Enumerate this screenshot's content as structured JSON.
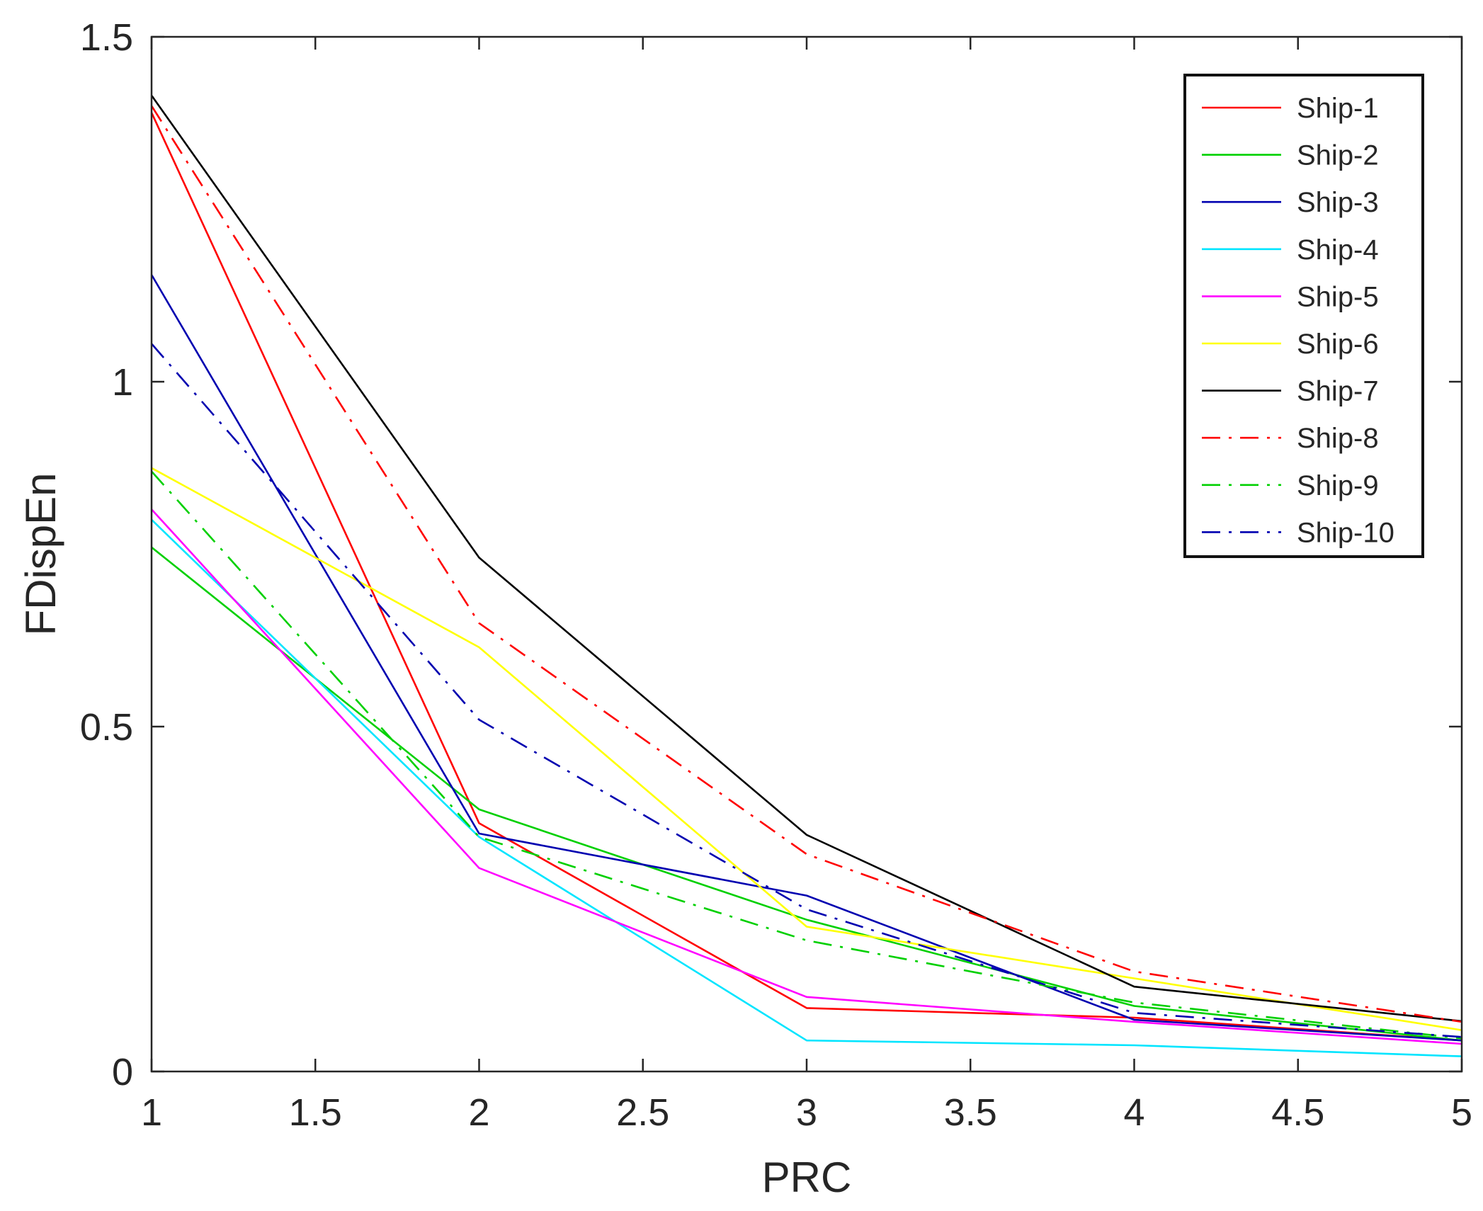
{
  "chart_data": {
    "type": "line",
    "title": "",
    "xlabel": "PRC",
    "ylabel": "FDispEn",
    "xlim": [
      1,
      5
    ],
    "ylim": [
      0,
      1.5
    ],
    "xticks": [
      1,
      1.5,
      2,
      2.5,
      3,
      3.5,
      4,
      4.5,
      5
    ],
    "xtick_labels": [
      "1",
      "1.5",
      "2",
      "2.5",
      "3",
      "3.5",
      "4",
      "4.5",
      "5"
    ],
    "yticks": [
      0,
      0.5,
      1,
      1.5
    ],
    "ytick_labels": [
      "0",
      "0.5",
      "1",
      "1.5"
    ],
    "grid": false,
    "legend_position": "top-right",
    "x": [
      1,
      2,
      3,
      4,
      5
    ],
    "series": [
      {
        "name": "Ship-1",
        "color": "#ff0000",
        "style": "solid",
        "values": [
          1.39,
          0.36,
          0.092,
          0.078,
          0.045
        ]
      },
      {
        "name": "Ship-2",
        "color": "#00d000",
        "style": "solid",
        "values": [
          0.76,
          0.38,
          0.22,
          0.095,
          0.045
        ]
      },
      {
        "name": "Ship-3",
        "color": "#0000b0",
        "style": "solid",
        "values": [
          1.155,
          0.345,
          0.255,
          0.075,
          0.045
        ]
      },
      {
        "name": "Ship-4",
        "color": "#00e5ff",
        "style": "solid",
        "values": [
          0.8,
          0.34,
          0.045,
          0.038,
          0.022
        ]
      },
      {
        "name": "Ship-5",
        "color": "#ff00ff",
        "style": "solid",
        "values": [
          0.815,
          0.295,
          0.108,
          0.072,
          0.04
        ]
      },
      {
        "name": "Ship-6",
        "color": "#ffff00",
        "style": "solid",
        "values": [
          0.875,
          0.615,
          0.21,
          0.135,
          0.06
        ]
      },
      {
        "name": "Ship-7",
        "color": "#000000",
        "style": "solid",
        "values": [
          1.415,
          0.745,
          0.343,
          0.123,
          0.073
        ]
      },
      {
        "name": "Ship-8",
        "color": "#ff0000",
        "style": "dashdot",
        "values": [
          1.4,
          0.65,
          0.315,
          0.145,
          0.072
        ]
      },
      {
        "name": "Ship-9",
        "color": "#00d000",
        "style": "dashdot",
        "values": [
          0.87,
          0.34,
          0.19,
          0.1,
          0.048
        ]
      },
      {
        "name": "Ship-10",
        "color": "#0000b0",
        "style": "dashdot",
        "values": [
          1.055,
          0.51,
          0.235,
          0.085,
          0.05
        ]
      }
    ]
  }
}
